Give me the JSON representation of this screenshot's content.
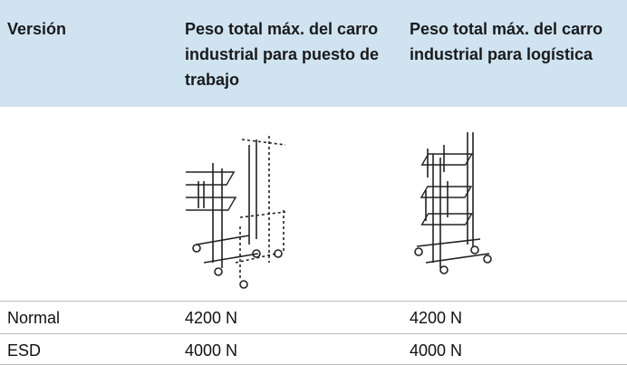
{
  "table": {
    "header": [
      "Versión",
      "Peso total máx. del carro industrial para puesto de trabajo",
      "Peso total máx. del carro industrial para logística"
    ],
    "rows": [
      [
        "Normal",
        "4200 N",
        "4200 N"
      ],
      [
        "ESD",
        "4000 N",
        "4000 N"
      ]
    ]
  }
}
